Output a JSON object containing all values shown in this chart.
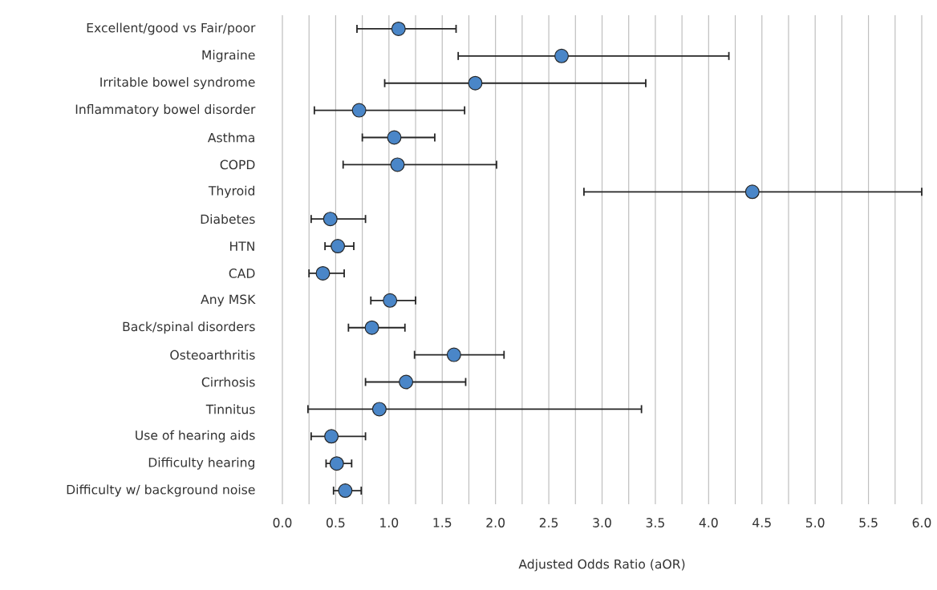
{
  "chart_data": {
    "type": "scatter",
    "orientation": "horizontal",
    "xlabel": "Adjusted Odds Ratio (aOR)",
    "categories": [
      "Excellent/good vs Fair/poor",
      "Migraine",
      "Irritable bowel syndrome",
      "Inflammatory bowel disorder",
      "Asthma",
      "COPD",
      "Thyroid",
      "Diabetes",
      "HTN",
      "CAD",
      "Any MSK",
      "Back/spinal disorders",
      "Osteoarthritis",
      "Cirrhosis",
      "Tinnitus",
      "Use of hearing aids",
      "Difficulty hearing",
      "Difficulty w/ background noise"
    ],
    "values": [
      1.09,
      2.62,
      1.81,
      0.72,
      1.05,
      1.08,
      4.41,
      0.45,
      0.52,
      0.38,
      1.01,
      0.84,
      1.61,
      1.16,
      0.91,
      0.46,
      0.51,
      0.59
    ],
    "errors": [
      [
        0.7,
        1.63
      ],
      [
        1.65,
        4.19
      ],
      [
        0.96,
        3.41
      ],
      [
        0.3,
        1.71
      ],
      [
        0.75,
        1.43
      ],
      [
        0.57,
        2.01
      ],
      [
        2.83,
        6.0
      ],
      [
        0.27,
        0.78
      ],
      [
        0.4,
        0.67
      ],
      [
        0.25,
        0.58
      ],
      [
        0.83,
        1.25
      ],
      [
        0.62,
        1.15
      ],
      [
        1.24,
        2.08
      ],
      [
        0.78,
        1.72
      ],
      [
        0.24,
        3.37
      ],
      [
        0.27,
        0.78
      ],
      [
        0.41,
        0.65
      ],
      [
        0.48,
        0.74
      ]
    ],
    "color": "#4a86c8",
    "grid": "x",
    "xlim": [
      0,
      6
    ],
    "xticks": [
      {
        "value": 0,
        "label": "0.0"
      },
      {
        "value": 0.25,
        "label": null
      },
      {
        "value": 0.5,
        "label": "0.5"
      },
      {
        "value": 0.75,
        "label": null
      },
      {
        "value": 1,
        "label": "1.0"
      },
      {
        "value": 1.25,
        "label": null
      },
      {
        "value": 1.5,
        "label": "1.5"
      },
      {
        "value": 1.75,
        "label": null
      },
      {
        "value": 2,
        "label": "2.0"
      },
      {
        "value": 2.25,
        "label": null
      },
      {
        "value": 2.5,
        "label": "2.5"
      },
      {
        "value": 2.75,
        "label": null
      },
      {
        "value": 3,
        "label": "3.0"
      },
      {
        "value": 3.25,
        "label": null
      },
      {
        "value": 3.5,
        "label": "3.5"
      },
      {
        "value": 3.75,
        "label": null
      },
      {
        "value": 4,
        "label": "4.0"
      },
      {
        "value": 4.25,
        "label": null
      },
      {
        "value": 4.5,
        "label": "4.5"
      },
      {
        "value": 4.75,
        "label": null
      },
      {
        "value": 5,
        "label": "5.0"
      },
      {
        "value": 5.25,
        "label": null
      },
      {
        "value": 5.5,
        "label": "5.5"
      },
      {
        "value": 5.75,
        "label": null
      },
      {
        "value": 6,
        "label": "6.0"
      }
    ]
  }
}
